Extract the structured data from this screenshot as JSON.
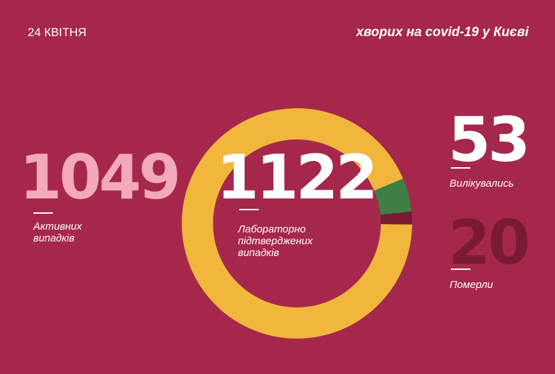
{
  "chart_data": {
    "type": "donut",
    "title": "24 КВІТНЯ",
    "subtitle": "хворих на covid-19 у Києві",
    "categories": [
      "Активних випадків",
      "Вилікувались",
      "Померли"
    ],
    "values": [
      1049,
      53,
      20
    ],
    "colors": [
      "#f0b73c",
      "#3f7f46",
      "#7a1a31"
    ],
    "total": 1122,
    "total_label": "Лабораторно підтверджених випадків"
  }
}
